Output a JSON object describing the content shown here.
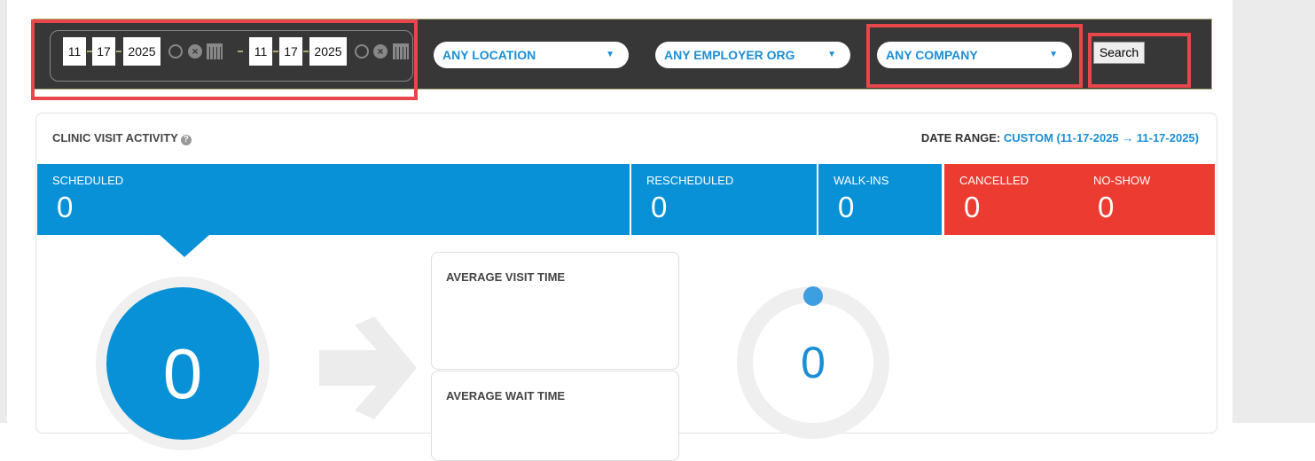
{
  "filters": {
    "start_date": {
      "month": "11",
      "day": "17",
      "year": "2025"
    },
    "end_date": {
      "month": "11",
      "day": "17",
      "year": "2025"
    },
    "location": "ANY LOCATION",
    "employer_org": "ANY EMPLOYER ORG",
    "company": "ANY COMPANY",
    "search_label": "Search"
  },
  "card": {
    "title": "CLINIC VISIT ACTIVITY",
    "date_range_label": "DATE RANGE:",
    "date_range_value": "CUSTOM (11-17-2025 → 11-17-2025)",
    "stats": [
      {
        "label": "SCHEDULED",
        "value": "0"
      },
      {
        "label": "RESCHEDULED",
        "value": "0"
      },
      {
        "label": "WALK-INS",
        "value": "0"
      },
      {
        "label": "CANCELLED",
        "value": "0"
      },
      {
        "label": "NO-SHOW",
        "value": "0"
      }
    ],
    "scheduled_big": "0",
    "avg_visit_label": "AVERAGE VISIT TIME",
    "avg_wait_label": "AVERAGE WAIT TIME",
    "donut_value": "0"
  },
  "colors": {
    "blue": "#0891d6",
    "red": "#ec3c31",
    "highlight": "#e8464a"
  }
}
